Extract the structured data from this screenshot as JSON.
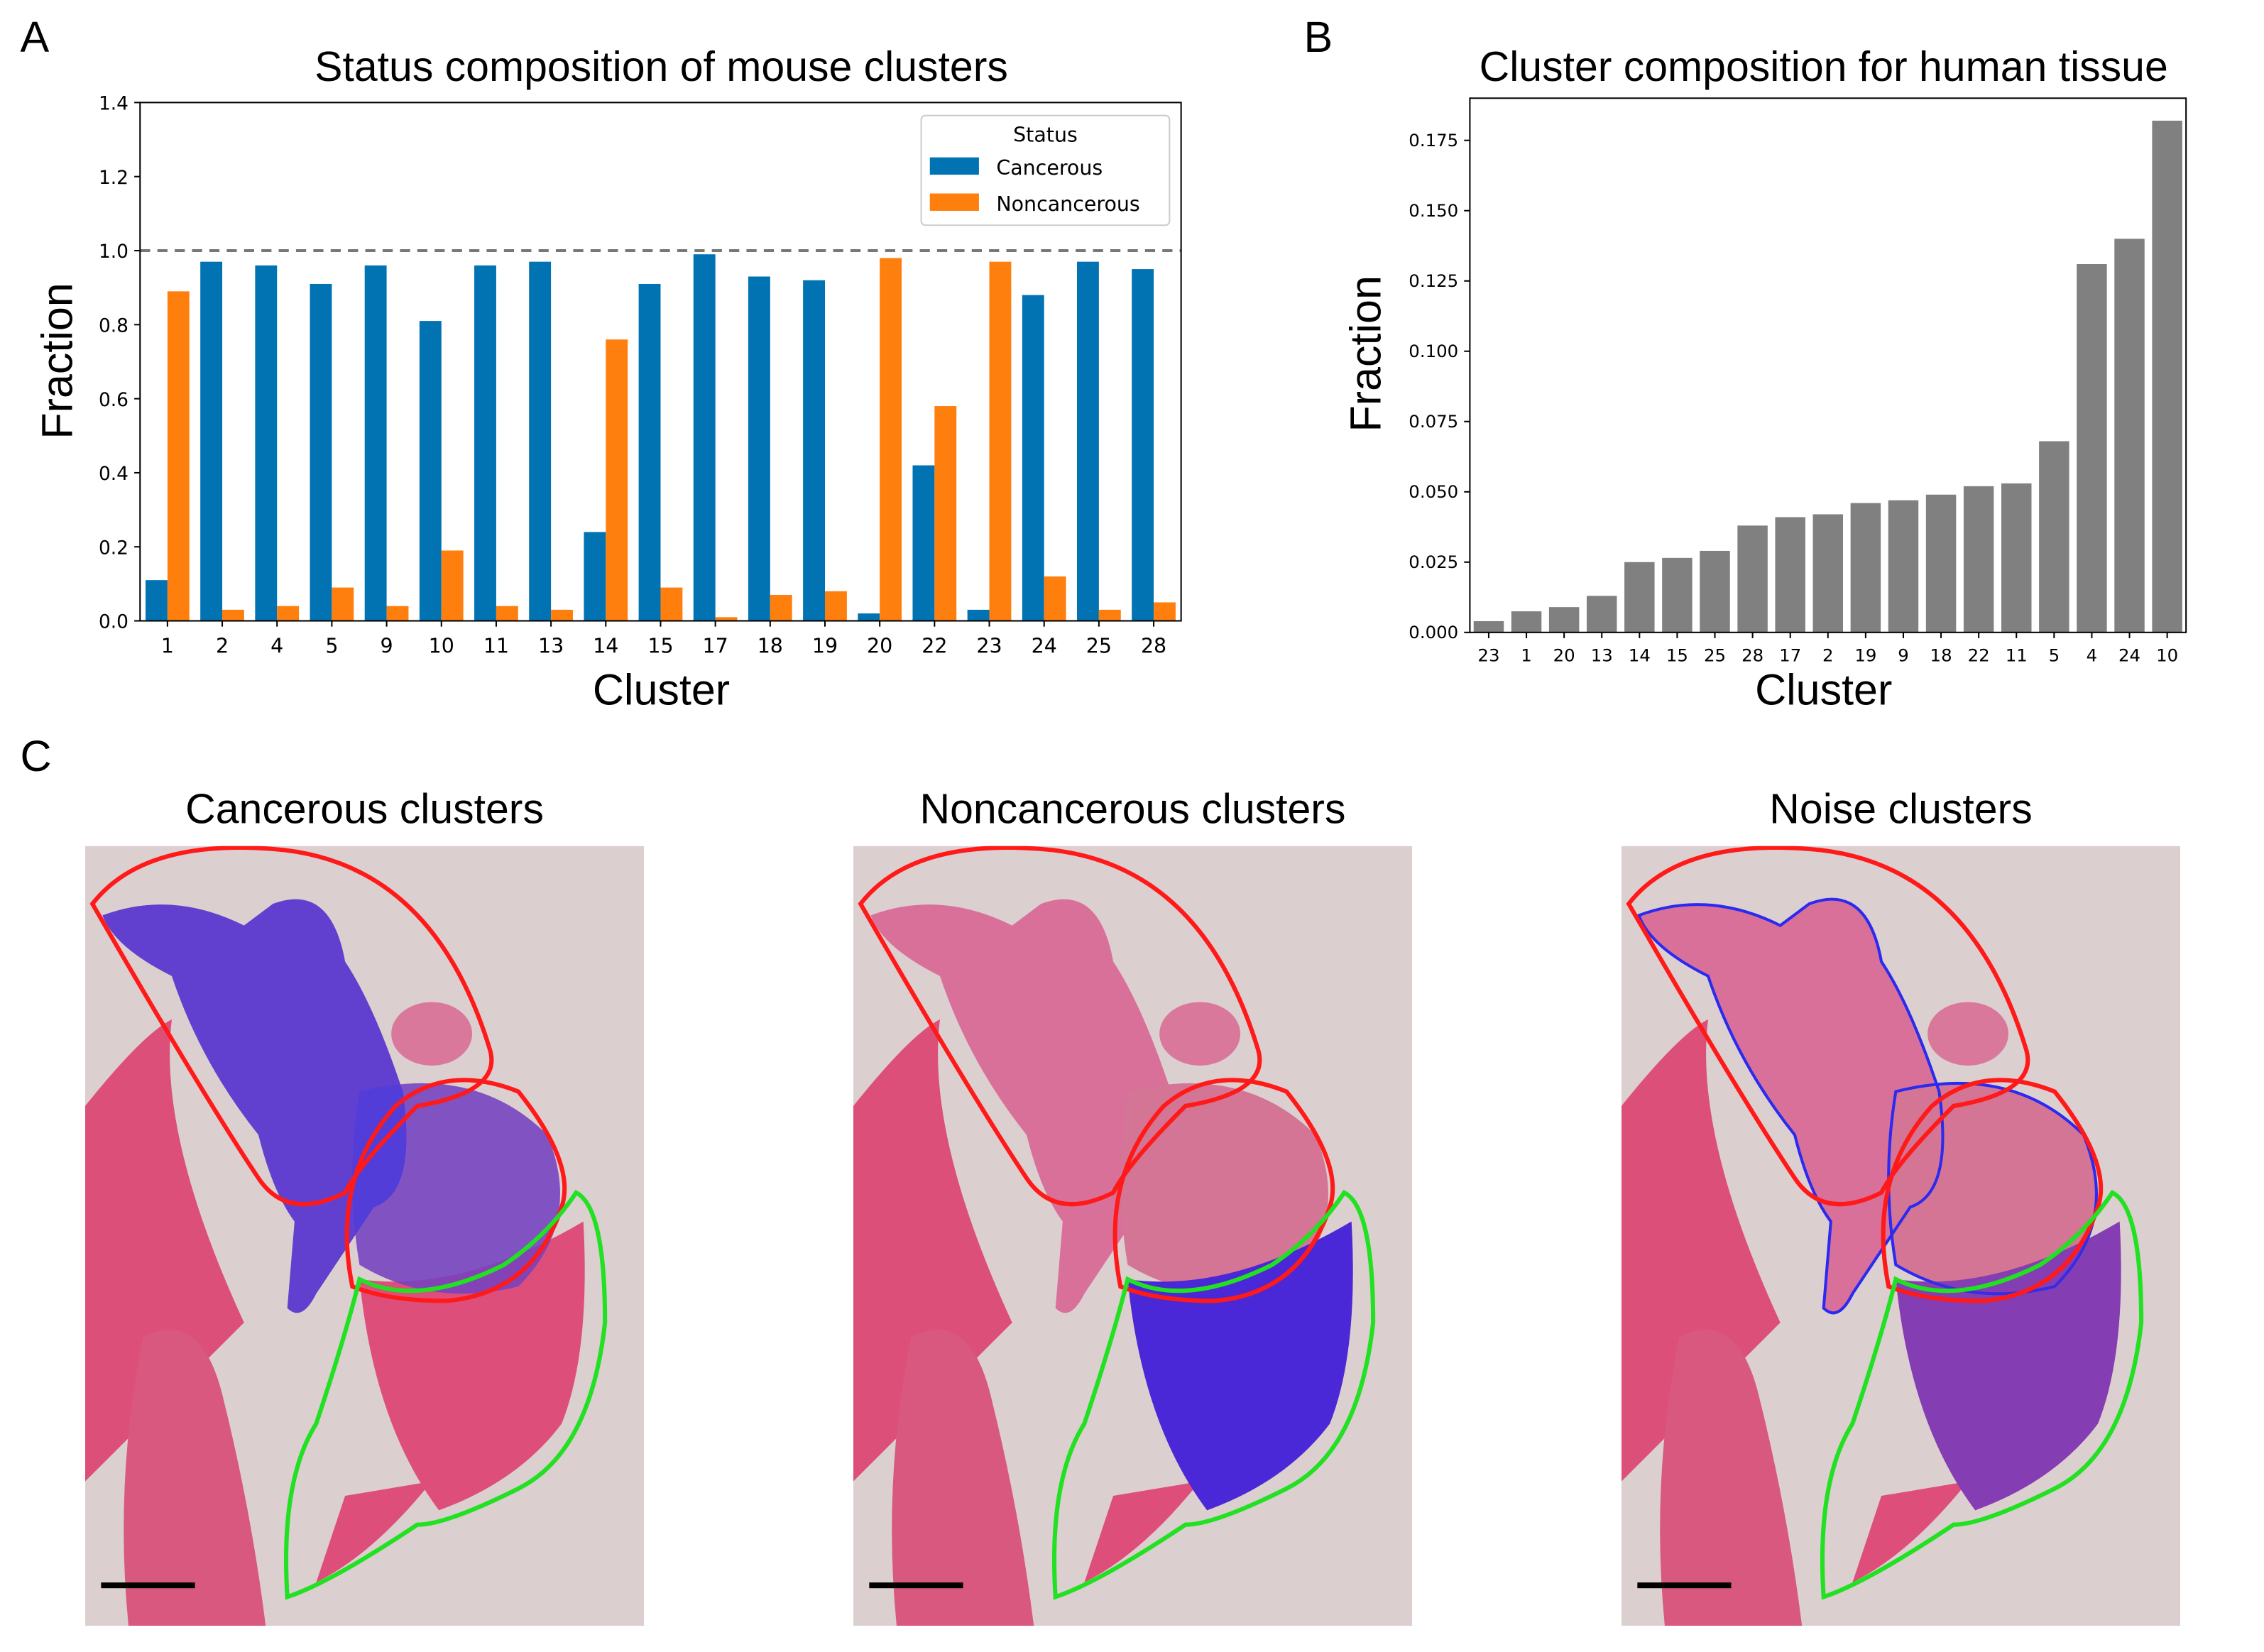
{
  "panels": {
    "a": "A",
    "b": "B",
    "c": "C"
  },
  "chart_data": [
    {
      "type": "bar",
      "title": "Status composition of mouse clusters",
      "xlabel": "Cluster",
      "ylabel": "Fraction",
      "ylim": [
        0,
        1.4
      ],
      "yticks": [
        "0.0",
        "0.2",
        "0.4",
        "0.6",
        "0.8",
        "1.0",
        "1.2",
        "1.4"
      ],
      "reference_line": 1.0,
      "legend": {
        "title": "Status",
        "placement": "top-right"
      },
      "categories": [
        "1",
        "2",
        "4",
        "5",
        "9",
        "10",
        "11",
        "13",
        "14",
        "15",
        "17",
        "18",
        "19",
        "20",
        "22",
        "23",
        "24",
        "25",
        "28"
      ],
      "series": [
        {
          "name": "Cancerous",
          "color": "#0173b2",
          "values": [
            0.11,
            0.97,
            0.96,
            0.91,
            0.96,
            0.81,
            0.96,
            0.97,
            0.24,
            0.91,
            0.99,
            0.93,
            0.92,
            0.02,
            0.42,
            0.03,
            0.88,
            0.97,
            0.95
          ]
        },
        {
          "name": "Noncancerous",
          "color": "#ff7f0e",
          "values": [
            0.89,
            0.03,
            0.04,
            0.09,
            0.04,
            0.19,
            0.04,
            0.03,
            0.76,
            0.09,
            0.01,
            0.07,
            0.08,
            0.98,
            0.58,
            0.97,
            0.12,
            0.03,
            0.05
          ]
        }
      ]
    },
    {
      "type": "bar",
      "title": "Cluster composition for human tissue",
      "xlabel": "Cluster",
      "ylabel": "Fraction",
      "ylim": [
        0,
        0.19
      ],
      "yticks": [
        "0.000",
        "0.025",
        "0.050",
        "0.075",
        "0.100",
        "0.125",
        "0.150",
        "0.175"
      ],
      "color": "#808080",
      "categories": [
        "23",
        "1",
        "20",
        "13",
        "14",
        "15",
        "25",
        "28",
        "17",
        "2",
        "19",
        "9",
        "18",
        "22",
        "11",
        "5",
        "4",
        "24",
        "10"
      ],
      "values": [
        0.004,
        0.0075,
        0.009,
        0.013,
        0.025,
        0.0265,
        0.029,
        0.038,
        0.041,
        0.042,
        0.046,
        0.047,
        0.049,
        0.052,
        0.053,
        0.068,
        0.131,
        0.14,
        0.182
      ]
    }
  ],
  "images": [
    {
      "title": "Cancerous clusters",
      "overlay": "cancerous"
    },
    {
      "title": "Noncancerous clusters",
      "overlay": "noncancerous"
    },
    {
      "title": "Noise clusters",
      "overlay": "noise"
    }
  ]
}
